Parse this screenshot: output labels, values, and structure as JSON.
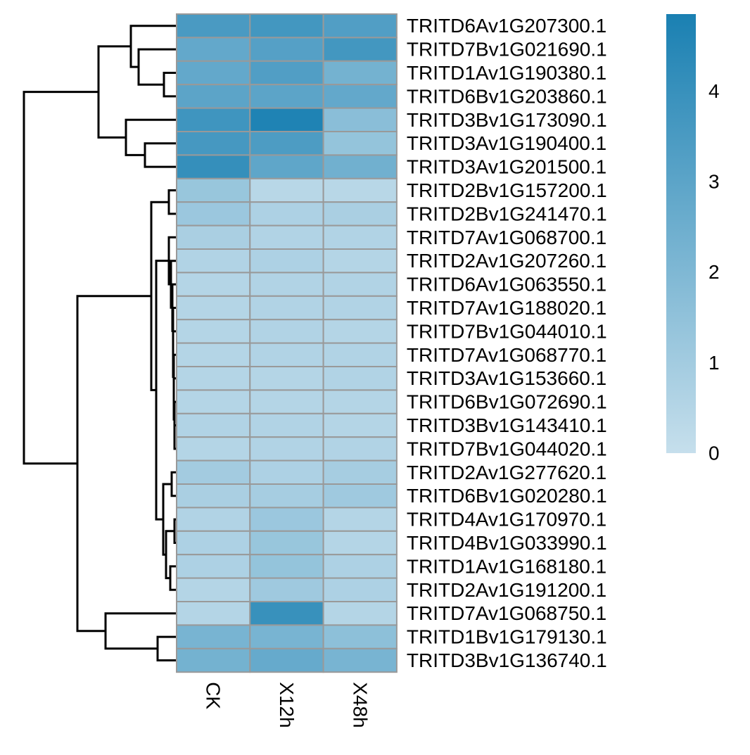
{
  "chart_data": {
    "type": "heatmap",
    "title": "",
    "columns": [
      "CK",
      "X12h",
      "X48h"
    ],
    "rows": [
      "TRITD6Av1G207300.1",
      "TRITD7Bv1G021690.1",
      "TRITD1Av1G190380.1",
      "TRITD6Bv1G203860.1",
      "TRITD3Bv1G173090.1",
      "TRITD3Av1G190400.1",
      "TRITD3Av1G201500.1",
      "TRITD2Bv1G157200.1",
      "TRITD2Bv1G241470.1",
      "TRITD7Av1G068700.1",
      "TRITD2Av1G207260.1",
      "TRITD6Av1G063550.1",
      "TRITD7Av1G188020.1",
      "TRITD7Bv1G044010.1",
      "TRITD7Av1G068770.1",
      "TRITD3Av1G153660.1",
      "TRITD6Bv1G072690.1",
      "TRITD3Bv1G143410.1",
      "TRITD7Bv1G044020.1",
      "TRITD2Av1G277620.1",
      "TRITD6Bv1G020280.1",
      "TRITD4Av1G170970.1",
      "TRITD4Bv1G033990.1",
      "TRITD1Av1G168180.1",
      "TRITD2Av1G191200.1",
      "TRITD7Av1G068750.1",
      "TRITD1Bv1G179130.1",
      "TRITD3Bv1G136740.1"
    ],
    "values": [
      [
        3.5,
        3.7,
        3.3
      ],
      [
        2.8,
        3.2,
        3.7
      ],
      [
        2.8,
        3.3,
        2.3
      ],
      [
        3.0,
        3.0,
        2.8
      ],
      [
        3.8,
        4.7,
        1.7
      ],
      [
        3.6,
        3.4,
        1.4
      ],
      [
        4.1,
        2.9,
        2.4
      ],
      [
        1.3,
        0.4,
        0.4
      ],
      [
        1.2,
        0.7,
        0.8
      ],
      [
        0.8,
        0.6,
        0.6
      ],
      [
        0.6,
        0.7,
        0.5
      ],
      [
        0.5,
        0.6,
        0.6
      ],
      [
        0.5,
        0.6,
        0.6
      ],
      [
        0.5,
        0.6,
        0.5
      ],
      [
        0.5,
        0.6,
        0.6
      ],
      [
        0.5,
        0.5,
        0.6
      ],
      [
        0.5,
        0.5,
        0.5
      ],
      [
        0.6,
        0.6,
        0.5
      ],
      [
        0.5,
        0.6,
        0.6
      ],
      [
        1.0,
        0.7,
        0.9
      ],
      [
        0.8,
        0.9,
        1.1
      ],
      [
        0.6,
        1.2,
        0.5
      ],
      [
        0.7,
        1.3,
        0.5
      ],
      [
        0.7,
        1.4,
        0.7
      ],
      [
        0.5,
        1.1,
        0.7
      ],
      [
        0.5,
        4.0,
        0.5
      ],
      [
        2.2,
        2.2,
        1.6
      ],
      [
        2.3,
        2.7,
        2.2
      ]
    ],
    "color_scale": {
      "min": 0,
      "max": 4.85,
      "low_color": "#c6dfec",
      "high_color": "#1a80b2"
    },
    "legend": {
      "ticks": [
        0,
        1,
        2,
        3,
        4
      ],
      "placement": "right"
    },
    "row_dendrogram": true,
    "col_dendrogram": false
  }
}
